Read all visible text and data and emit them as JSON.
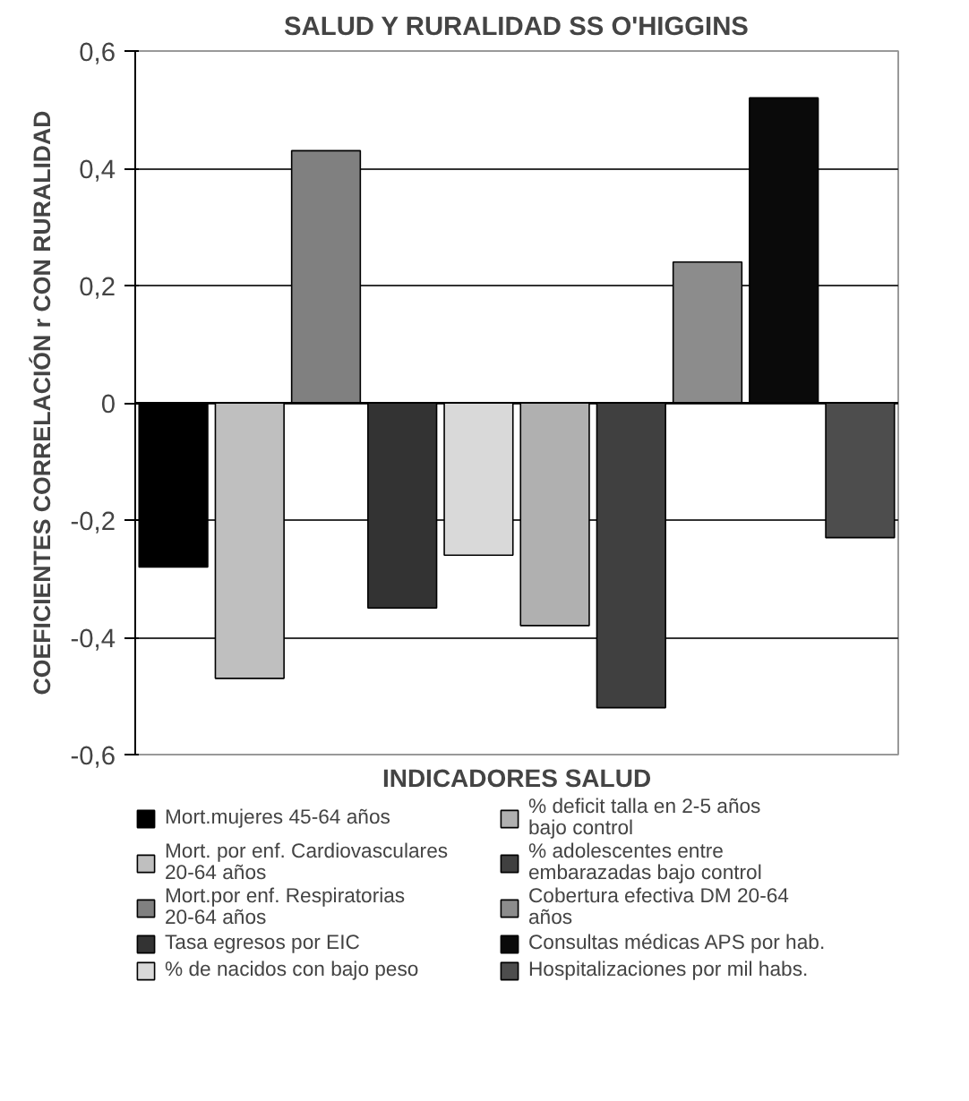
{
  "chart_data": {
    "type": "bar",
    "title": "SALUD Y RURALIDAD SS O'HIGGINS",
    "xlabel": "INDICADORES SALUD",
    "ylabel": "COEFICIENTES CORRELACIÓN r CON RURALIDAD",
    "categories": [
      null,
      null,
      null,
      null,
      null,
      null,
      null,
      null,
      null,
      null
    ],
    "series": [
      {
        "name": "Mort.mujeres 45-64 años",
        "color": "#000000",
        "values": [
          -0.28,
          null,
          null,
          null,
          null,
          null,
          null,
          null,
          null,
          null
        ]
      },
      {
        "name": "Mort. por enf. Cardiovasculares 20-64 años",
        "color": "#bfbfbf",
        "values": [
          null,
          -0.47,
          null,
          null,
          null,
          null,
          null,
          null,
          null,
          null
        ]
      },
      {
        "name": "Mort.por enf. Respiratorias 20-64 años",
        "color": "#808080",
        "values": [
          null,
          null,
          0.43,
          null,
          null,
          null,
          null,
          null,
          null,
          null
        ]
      },
      {
        "name": "Tasa egresos por EIC",
        "color": "#333333",
        "values": [
          null,
          null,
          null,
          -0.35,
          null,
          null,
          null,
          null,
          null,
          null
        ]
      },
      {
        "name": "% de nacidos con bajo peso",
        "color": "#d9d9d9",
        "values": [
          null,
          null,
          null,
          null,
          -0.26,
          null,
          null,
          null,
          null,
          null
        ]
      },
      {
        "name": "% deficit talla en 2-5 años bajo control",
        "color": "#b0b0b0",
        "values": [
          null,
          null,
          null,
          null,
          null,
          -0.38,
          null,
          null,
          null,
          null
        ]
      },
      {
        "name": "% adolescentes entre embarazadas bajo control",
        "color": "#404040",
        "values": [
          null,
          null,
          null,
          null,
          null,
          null,
          -0.52,
          null,
          null,
          null
        ]
      },
      {
        "name": "Cobertura efectiva DM 20-64 años",
        "color": "#8c8c8c",
        "values": [
          null,
          null,
          null,
          null,
          null,
          null,
          null,
          0.24,
          null,
          null
        ]
      },
      {
        "name": "Consultas médicas APS por hab.",
        "color": "#0a0a0a",
        "values": [
          null,
          null,
          null,
          null,
          null,
          null,
          null,
          null,
          0.52,
          null
        ]
      },
      {
        "name": "Hospitalizaciones por mil habs.",
        "color": "#4d4d4d",
        "values": [
          null,
          null,
          null,
          null,
          null,
          null,
          null,
          null,
          null,
          -0.23
        ]
      }
    ],
    "ylim": [
      -0.6,
      0.6
    ],
    "yticks": [
      {
        "value": -0.6,
        "label": "-0,6"
      },
      {
        "value": -0.4,
        "label": "-0,4"
      },
      {
        "value": -0.2,
        "label": "-0,2"
      },
      0,
      {
        "value": 0.2,
        "label": "0,2"
      },
      {
        "value": 0.4,
        "label": "0,4"
      },
      {
        "value": 0.6,
        "label": "0,6"
      }
    ],
    "grid": "y",
    "legend": "bottom"
  }
}
